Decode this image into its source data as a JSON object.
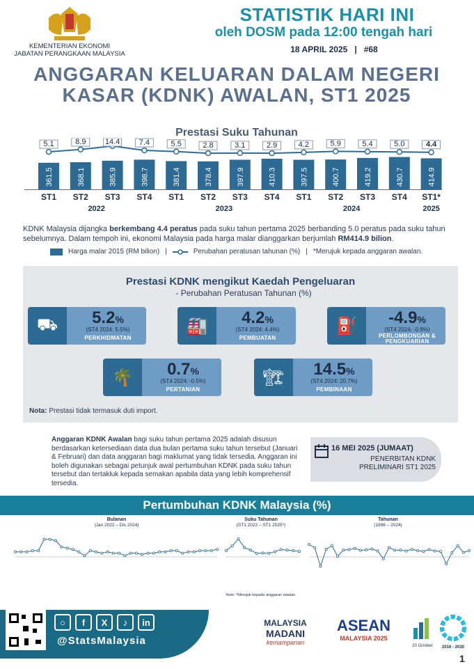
{
  "header": {
    "ministry1": "KEMENTERIAN EKONOMI",
    "ministry2": "JABATAN PERANGKAAN MALAYSIA",
    "title": "STATISTIK HARI INI",
    "subtitle": "oleh DOSM pada 12:00 tengah hari",
    "date": "18 APRIL 2025",
    "sep": "|",
    "issue": "#68"
  },
  "main": {
    "title1": "ANGGARAN KELUARAN DALAM NEGERI",
    "title2": "KASAR (KDNK) AWALAN, ST1 2025"
  },
  "chart_data": {
    "type": "bar",
    "title": "Prestasi Suku Tahunan",
    "categories": [
      "ST1",
      "ST2",
      "ST3",
      "ST4",
      "ST1",
      "ST2",
      "ST3",
      "ST4",
      "ST1",
      "ST2",
      "ST3",
      "ST4",
      "ST1*"
    ],
    "years": [
      "2022",
      "2023",
      "2024",
      "2025"
    ],
    "series": [
      {
        "name": "Harga malar 2015 (RM bilion)",
        "values": [
          361.5,
          368.1,
          385.9,
          398.7,
          381.4,
          378.4,
          397.9,
          410.3,
          397.5,
          400.7,
          419.2,
          430.7,
          414.9
        ]
      },
      {
        "name": "Perubahan peratusan tahunan (%)",
        "values": [
          5.1,
          8.9,
          14.4,
          7.4,
          5.5,
          2.8,
          3.1,
          2.9,
          4.2,
          5.9,
          5.4,
          5.0,
          4.4
        ]
      }
    ],
    "value_labels": [
      "361.5",
      "368.1",
      "385.9",
      "398.7",
      "381.4",
      "378.4",
      "397.9",
      "410.3",
      "397.5",
      "400.7",
      "419.2",
      "430.7",
      "414.9"
    ],
    "pct_labels": [
      "5.1",
      "8.9",
      "14.4",
      "7.4",
      "5.5",
      "2.8",
      "3.1",
      "2.9",
      "4.2",
      "5.9",
      "5.4",
      "5.0",
      "4.4"
    ]
  },
  "summary": {
    "p1": "KDNK Malaysia dijangka ",
    "p1b": "berkembang 4.4 peratus",
    "p1c": " pada suku tahun pertama 2025 berbanding 5.0 peratus pada suku tahun sebelumnya. Dalam tempoh ini, ekonomi Malaysia pada harga malar dianggarkan berjumlah ",
    "p1d": "RM414.9 bilion",
    "p1e": ".",
    "legend_bar": "Harga malar 2015 (RM bilion)",
    "legend_line": "Perubahan peratusan tahunan (%)",
    "legend_note": "*Merujuk kepada anggaran awalan.",
    "sep": "|"
  },
  "expenditure": {
    "title": "Prestasi KDNK mengikut Kaedah Pengeluaran",
    "subtitle": "- Perubahan Peratusan Tahunan (%)",
    "cards": [
      {
        "value": "5.2",
        "unit": "%",
        "prev": "(ST4 2024: 5.5%)",
        "name": "PERKHIDMATAN",
        "icon": "hand-truck-icon"
      },
      {
        "value": "4.2",
        "unit": "%",
        "prev": "(ST4 2024: 4.4%)",
        "name": "PEMBUATAN",
        "icon": "factory-icon"
      },
      {
        "value": "-4.9",
        "unit": "%",
        "prev": "(ST4 2024: -0.9%)",
        "name": "PERLOMBONGAN & PENGKUARIAN",
        "icon": "oil-rig-icon"
      },
      {
        "value": "0.7",
        "unit": "%",
        "prev": "(ST4 2024: -0.5%)",
        "name": "PERTANIAN",
        "icon": "palm-icon"
      },
      {
        "value": "14.5",
        "unit": "%",
        "prev": "(ST4 2024: 20.7%)",
        "name": "PEMBINAAN",
        "icon": "crane-icon"
      }
    ],
    "note_label": "Nota:",
    "note": " Prestasi tidak termasuk duti import."
  },
  "awalan": {
    "bold": "Anggaran KDNK Awalan",
    "text": " bagi suku tahun pertama 2025 adalah disusun berdasarkan ketersediaan data dua bulan pertama suku tahun tersebut (Januari & Februari) dan data anggaran bagi maklumat yang tidak tersedia. Anggaran ini boleh digunakan sebagai petunjuk awal pertumbuhan KDNK pada suku tahun tersebut dan tertakluk kepada semakan apabila data yang lebih komprehensif tersedia.",
    "pub_date": "16 MEI 2025 (JUMAAT)",
    "pub1": "PENERBITAN KDNK",
    "pub2": "PRELIMINARI ST1 2025"
  },
  "growth": {
    "title": "Pertumbuhan KDNK Malaysia (%)",
    "monthly_title": "Bulanan",
    "monthly_range": "(Jan 2022 – Dis 2024)",
    "quarterly_title": "Suku Tahunan",
    "quarterly_range": "(ST1 2022 – ST1 2025*)",
    "annual_title": "Tahunan",
    "annual_range": "(1996 – 2024)",
    "note": "Note: *Merujuk kepada anggaran awalan."
  },
  "footer": {
    "handle": "@StatsMalaysia",
    "logo1a": "MALAYSIA",
    "logo1b": "MADANI",
    "logo1c": "kemampanan",
    "logo2a": "ASEAN",
    "logo2b": "MALAYSIA 2025",
    "logo3": "20 October",
    "logo4": "2016 - 2030",
    "page": "1"
  }
}
